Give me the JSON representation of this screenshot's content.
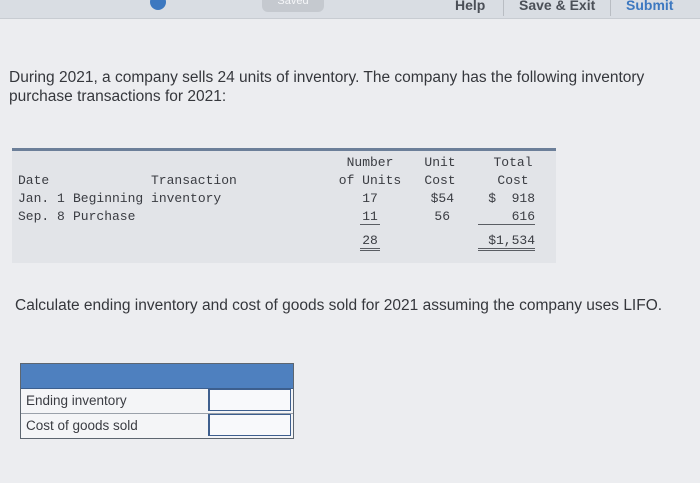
{
  "toolbar": {
    "saved_label": "Saved",
    "help_label": "Help",
    "save_exit_label": "Save & Exit",
    "submit_label": "Submit"
  },
  "intro": "During 2021, a company sells 24 units of inventory. The company has the following inventory purchase transactions for 2021:",
  "table": {
    "headers": {
      "date": "Date",
      "transaction": "Transaction",
      "units_line1": "Number",
      "units_line2": "of Units",
      "unit_cost_line1": "Unit",
      "unit_cost_line2": "Cost",
      "total_cost_line1": "Total",
      "total_cost_line2": "Cost"
    },
    "rows": [
      {
        "date": "Jan. 1",
        "transaction": "Beginning inventory",
        "units": "17",
        "unit_cost": "$54",
        "total_cost": "$  918"
      },
      {
        "date": "Sep. 8",
        "transaction": "Purchase",
        "units": "11",
        "unit_cost": "56",
        "total_cost": "616"
      }
    ],
    "totals": {
      "units": "28",
      "total_cost": "$1,534"
    }
  },
  "question": "Calculate ending inventory and cost of goods sold for 2021 assuming the company uses LIFO.",
  "answer_table": {
    "rows": [
      {
        "label": "Ending inventory",
        "value": ""
      },
      {
        "label": "Cost of goods sold",
        "value": ""
      }
    ]
  },
  "colors": {
    "accent": "#4e80bf",
    "table_header_bar": "#6c7f99",
    "background": "#ecedf0"
  }
}
